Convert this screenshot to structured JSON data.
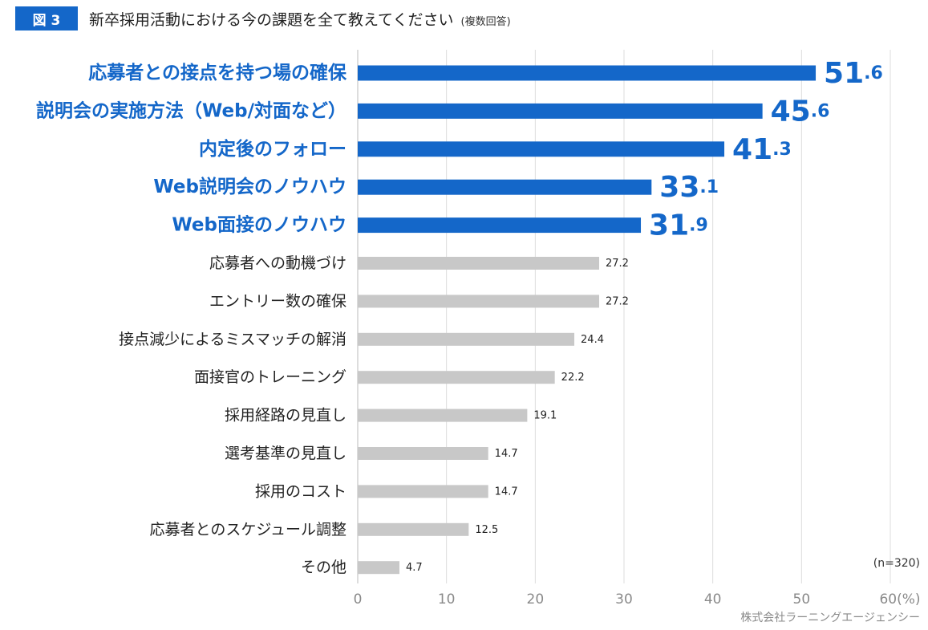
{
  "figure": {
    "badge": "図 3",
    "title": "新卒採用活動における今の課題を全て教えてください",
    "title_note": "(複数回答)",
    "sample_note": "(n=320)",
    "credit": "株式会社ラーニングエージェンシー"
  },
  "colors": {
    "highlight": "#1467c9",
    "default_bar": "#c8c8c8",
    "grid": "#dddddd"
  },
  "chart_data": {
    "type": "bar",
    "orientation": "horizontal",
    "categories": [
      "応募者との接点を持つ場の確保",
      "説明会の実施方法（Web/対面など）",
      "内定後のフォロー",
      "Web説明会のノウハウ",
      "Web面接のノウハウ",
      "応募者への動機づけ",
      "エントリー数の確保",
      "接点減少によるミスマッチの解消",
      "面接官のトレーニング",
      "採用経路の見直し",
      "選考基準の見直し",
      "採用のコスト",
      "応募者とのスケジュール調整",
      "その他"
    ],
    "values": [
      51.6,
      45.6,
      41.3,
      33.1,
      31.9,
      27.2,
      27.2,
      24.4,
      22.2,
      19.1,
      14.7,
      14.7,
      12.5,
      4.7
    ],
    "highlighted_count": 5,
    "xlim": [
      0,
      60
    ],
    "xticks": [
      0,
      10,
      20,
      30,
      40,
      50,
      60
    ],
    "x_unit": "(%)",
    "grid": true
  }
}
